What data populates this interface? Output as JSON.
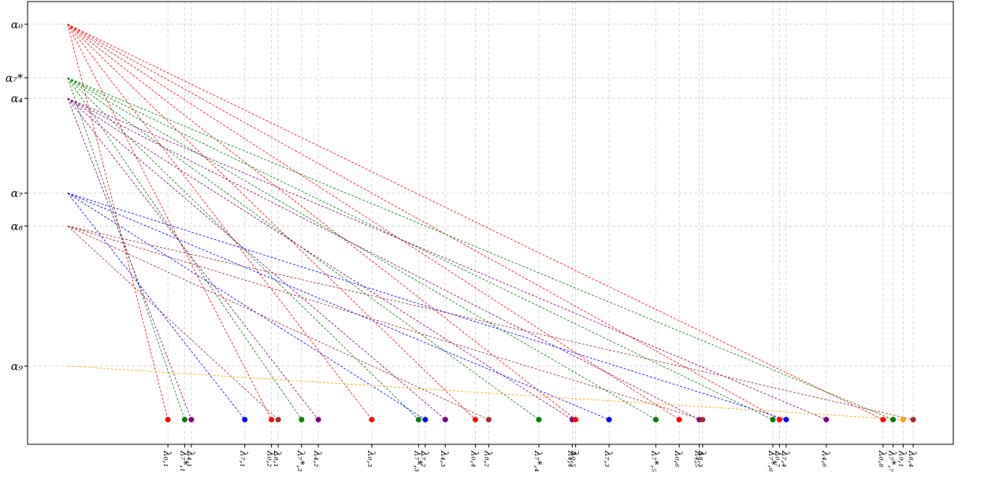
{
  "chart_data": {
    "type": "scatter",
    "title": "",
    "xlabel": "",
    "ylabel": "",
    "grid": true,
    "line_style": "dashed",
    "colors": {
      "0": "#ff0000",
      "7*": "#008000",
      "4": "#800080",
      "7": "#0000ff",
      "8": "#a52a2a",
      "9": "#ffa500"
    },
    "alphas": [
      {
        "key": "0",
        "label": "α₀",
        "y": 0
      },
      {
        "key": "7*",
        "label": "α₇*",
        "y": -1.3
      },
      {
        "key": "4",
        "label": "α₄",
        "y": -1.8
      },
      {
        "key": "7",
        "label": "α₇",
        "y": -4.1
      },
      {
        "key": "8",
        "label": "α₈",
        "y": -4.9
      },
      {
        "key": "9",
        "label": "α₉",
        "y": -8.3
      }
    ],
    "lambdas": [
      {
        "label": "λ₀,₁",
        "alpha": "0",
        "x": 0.3
      },
      {
        "label": "λ₇*,₁",
        "alpha": "7*",
        "x": 0.35
      },
      {
        "label": "λ₄,₁",
        "alpha": "4",
        "x": 0.37
      },
      {
        "label": "λ₇,₁",
        "alpha": "7",
        "x": 0.53
      },
      {
        "label": "λ₀,₂",
        "alpha": "0",
        "x": 0.61
      },
      {
        "label": "λ₈,₁",
        "alpha": "8",
        "x": 0.63
      },
      {
        "label": "λ₇*,₂",
        "alpha": "7*",
        "x": 0.7
      },
      {
        "label": "λ₄,₂",
        "alpha": "4",
        "x": 0.75
      },
      {
        "label": "λ₀,₃",
        "alpha": "0",
        "x": 0.91
      },
      {
        "label": "λ₇*,₃",
        "alpha": "7*",
        "x": 1.05
      },
      {
        "label": "λ₇,₂",
        "alpha": "7",
        "x": 1.07
      },
      {
        "label": "λ₄,₃",
        "alpha": "4",
        "x": 1.13
      },
      {
        "label": "λ₀,₄",
        "alpha": "0",
        "x": 1.22
      },
      {
        "label": "λ₈,₂",
        "alpha": "8",
        "x": 1.26
      },
      {
        "label": "λ₇*,₄",
        "alpha": "7*",
        "x": 1.41
      },
      {
        "label": "λ₄,₄",
        "alpha": "4",
        "x": 1.51
      },
      {
        "label": "λ₀,₅",
        "alpha": "0",
        "x": 1.52
      },
      {
        "label": "λ₇,₃",
        "alpha": "7",
        "x": 1.62
      },
      {
        "label": "λ₇*,₅",
        "alpha": "7*",
        "x": 1.76
      },
      {
        "label": "λ₀,₆",
        "alpha": "0",
        "x": 1.83
      },
      {
        "label": "λ₄,₅",
        "alpha": "4",
        "x": 1.89
      },
      {
        "label": "λ₈,₃",
        "alpha": "8",
        "x": 1.9
      },
      {
        "label": "λ₇*,₆",
        "alpha": "7*",
        "x": 2.11
      },
      {
        "label": "λ₀,₇",
        "alpha": "0",
        "x": 2.13
      },
      {
        "label": "λ₇,₄",
        "alpha": "7",
        "x": 2.15
      },
      {
        "label": "λ₄,₆",
        "alpha": "4",
        "x": 2.27
      },
      {
        "label": "λ₀,₈",
        "alpha": "0",
        "x": 2.44
      },
      {
        "label": "λ₇*,₇",
        "alpha": "7*",
        "x": 2.47
      },
      {
        "label": "λ₉,₁",
        "alpha": "9",
        "x": 2.5
      },
      {
        "label": "λ₈,₄",
        "alpha": "8",
        "x": 2.53
      }
    ],
    "lambda_y": -9.6,
    "alpha_x": 0,
    "xlim": [
      -0.12,
      2.65
    ],
    "ylim": [
      -10.2,
      0.55
    ]
  }
}
